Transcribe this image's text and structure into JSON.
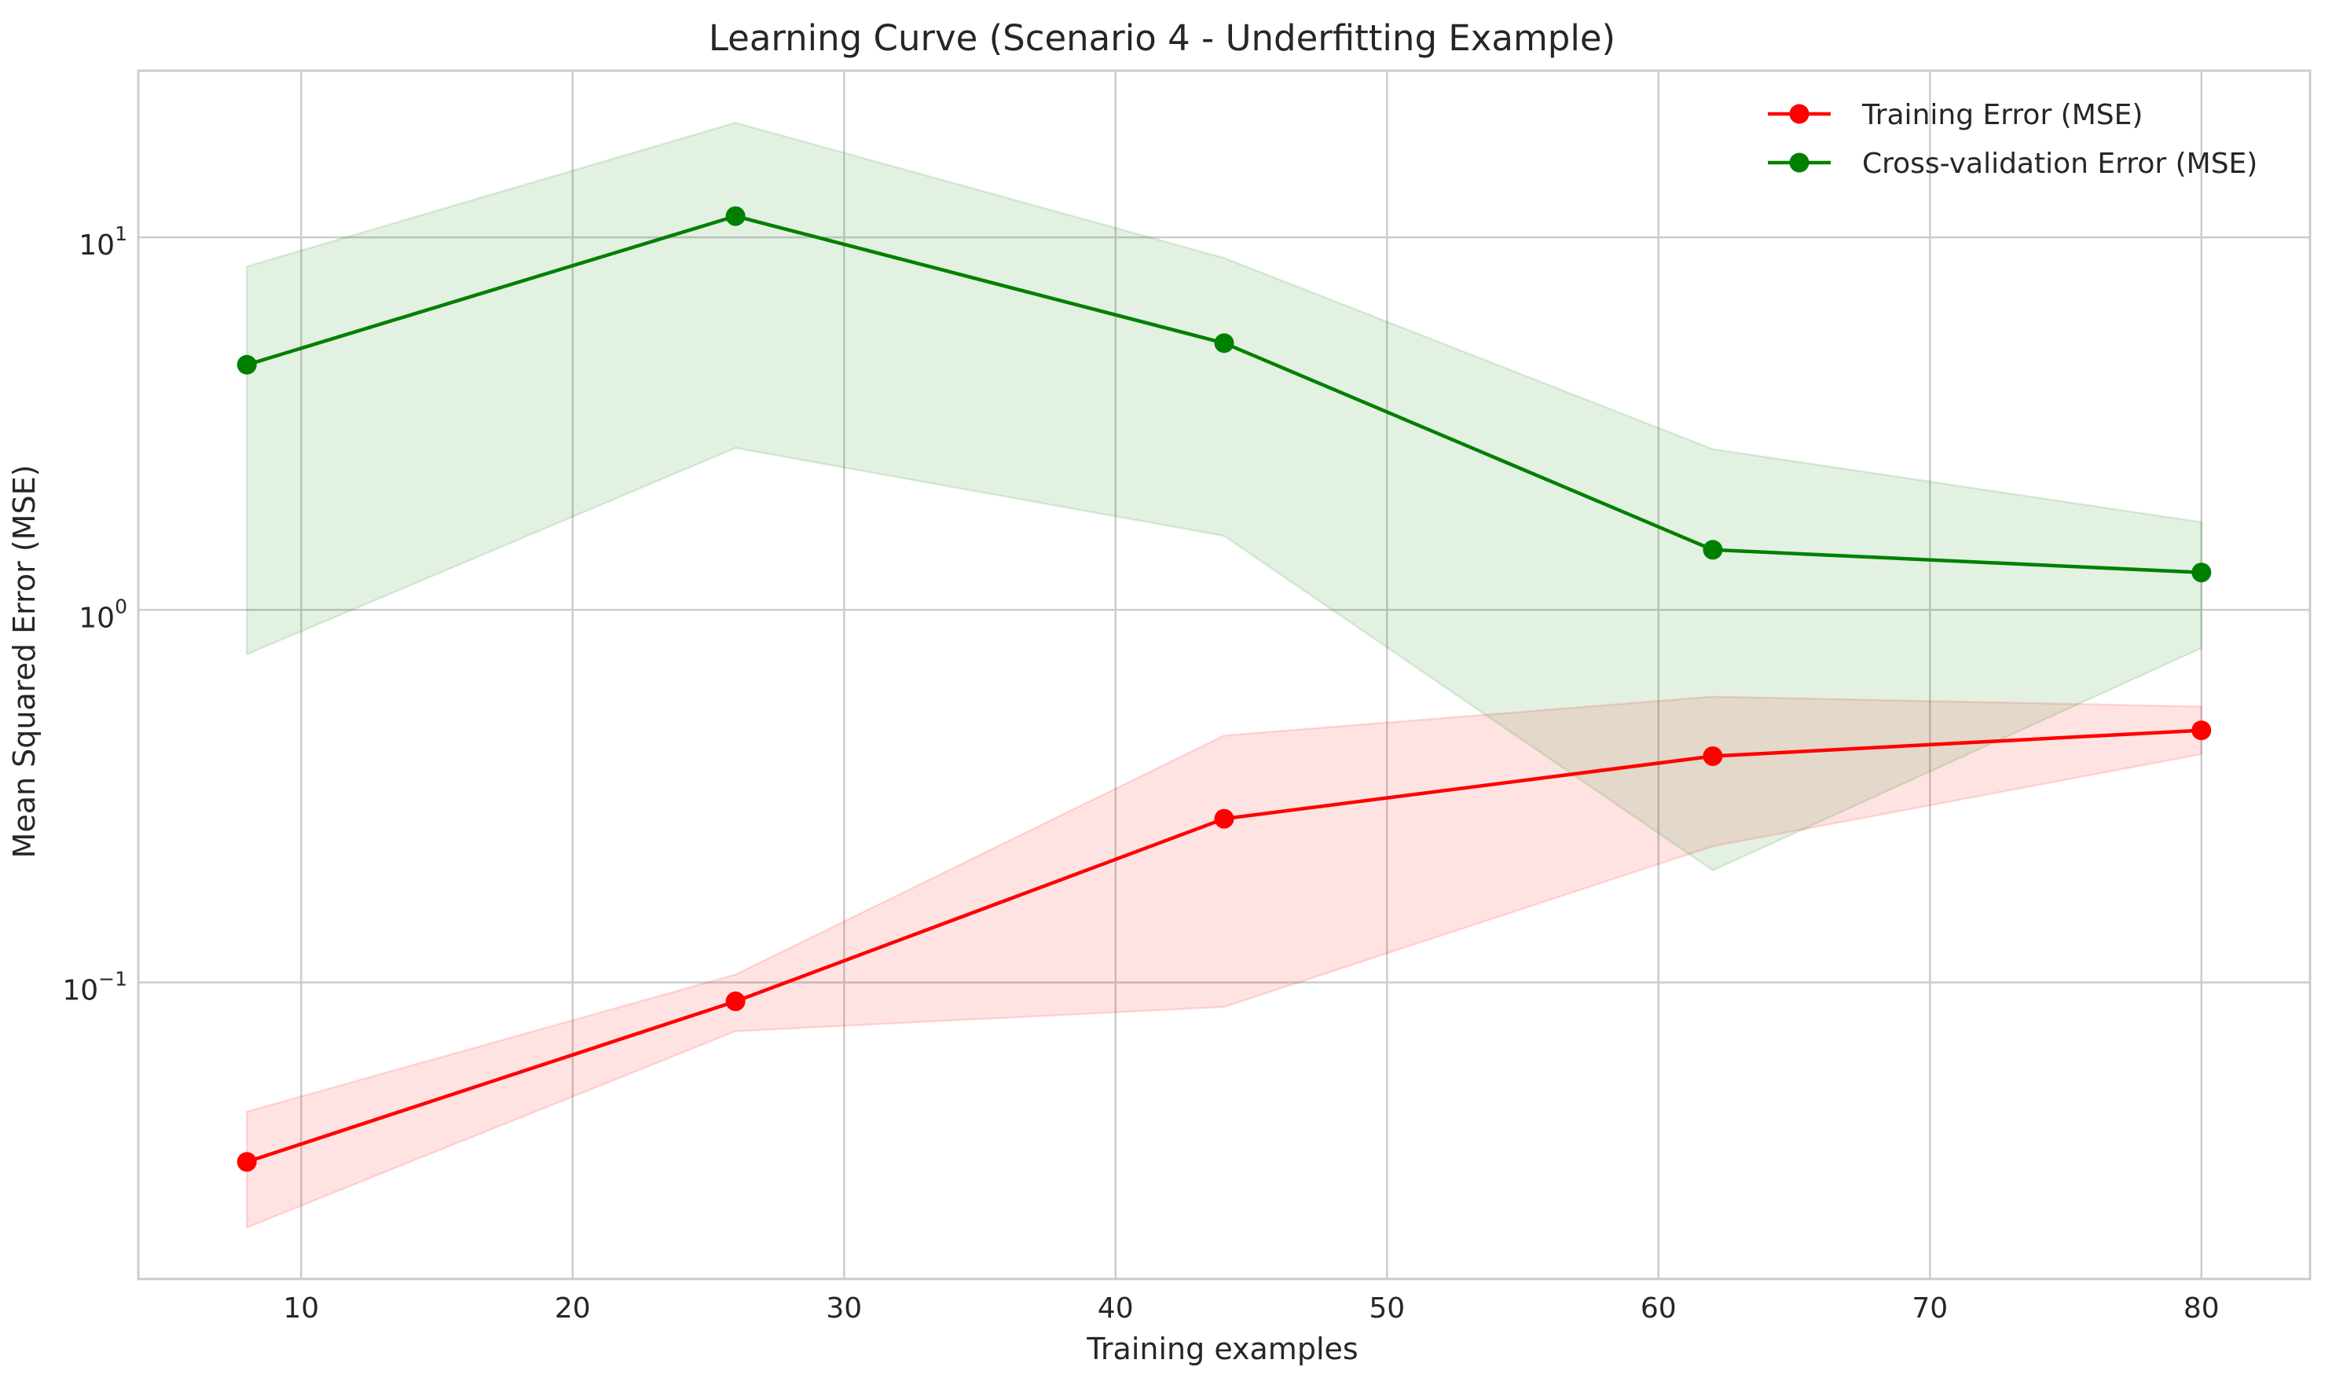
{
  "chart_data": {
    "type": "line",
    "title": "Learning Curve (Scenario 4 - Underfitting Example)",
    "xlabel": "Training examples",
    "ylabel": "Mean Squared Error (MSE)",
    "x": [
      8,
      26,
      44,
      62,
      80
    ],
    "xlim": [
      4,
      84
    ],
    "x_ticks": [
      10,
      20,
      30,
      40,
      50,
      60,
      70,
      80
    ],
    "x_tick_labels": [
      "10",
      "20",
      "30",
      "40",
      "50",
      "60",
      "70",
      "80"
    ],
    "yscale": "log",
    "ylim": [
      0.016,
      28
    ],
    "y_ticks": [
      0.1,
      1,
      10
    ],
    "y_tick_labels": [
      {
        "base": "10",
        "exp": "−1"
      },
      {
        "base": "10",
        "exp": "0"
      },
      {
        "base": "10",
        "exp": "1"
      }
    ],
    "grid": true,
    "legend_position": "upper-right",
    "series": [
      {
        "name": "Training Error (MSE)",
        "color": "#ff0000",
        "values": [
          0.033,
          0.089,
          0.275,
          0.405,
          0.475
        ],
        "band_lower": [
          0.022,
          0.074,
          0.086,
          0.232,
          0.41
        ],
        "band_upper": [
          0.045,
          0.105,
          0.46,
          0.585,
          0.55
        ]
      },
      {
        "name": "Cross-validation Error (MSE)",
        "color": "#008000",
        "values": [
          4.55,
          11.4,
          5.2,
          1.45,
          1.26
        ],
        "band_lower": [
          0.76,
          2.72,
          1.58,
          0.2,
          0.79
        ],
        "band_upper": [
          8.35,
          20.3,
          8.8,
          2.7,
          1.72
        ]
      }
    ]
  }
}
